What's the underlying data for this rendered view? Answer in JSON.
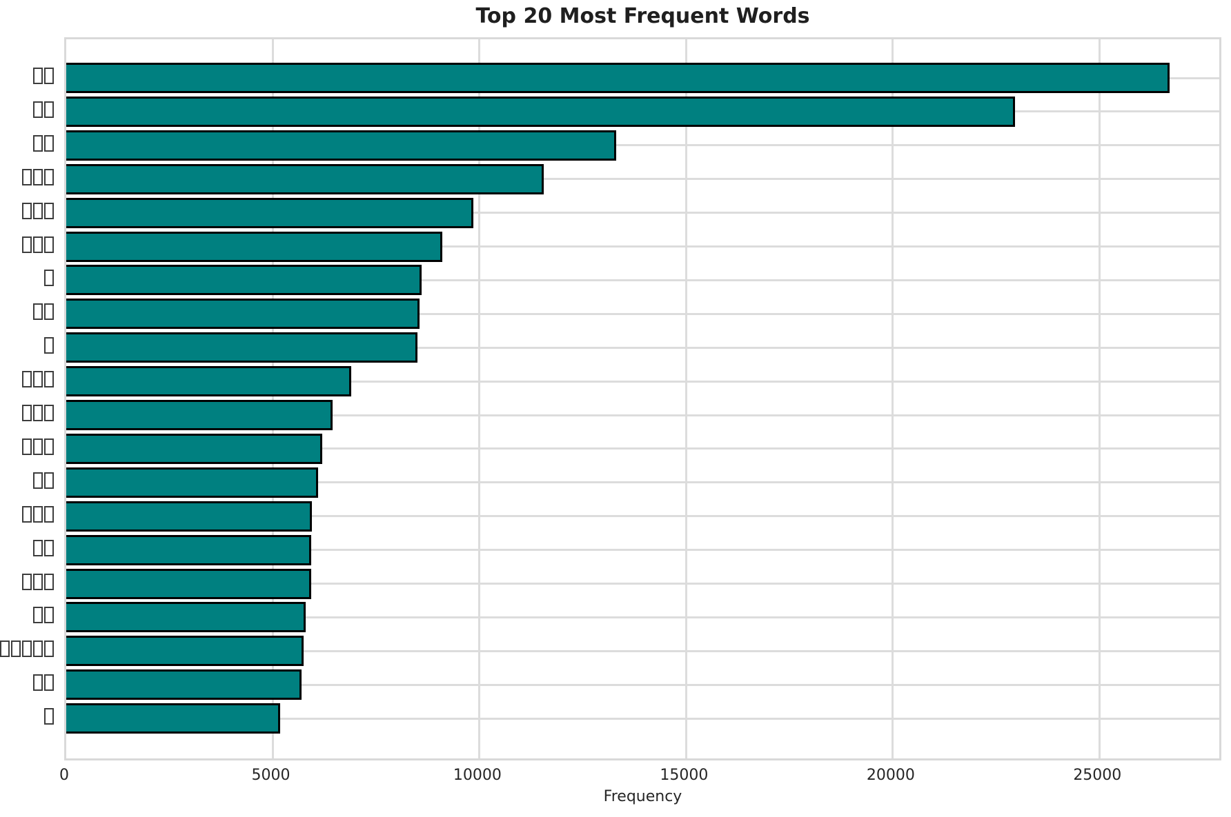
{
  "chart_data": {
    "type": "bar",
    "orientation": "horizontal",
    "title": "Top 20 Most Frequent Words",
    "xlabel": "Frequency",
    "ylabel": "",
    "label_note": "y-axis labels are CJK words drawn as missing-glyph (tofu) boxes; each □ represents one unrenderable character",
    "categories": [
      "□□",
      "□□",
      "□□",
      "□□□",
      "□□□",
      "□□□",
      "□",
      "□□",
      "□",
      "□□□",
      "□□□",
      "□□□",
      "□□",
      "□□□",
      "□□",
      "□□□",
      "□□",
      "□□□□□",
      "□□",
      "□"
    ],
    "values": [
      26700,
      22950,
      13300,
      11550,
      9850,
      9100,
      8600,
      8550,
      8500,
      6900,
      6450,
      6200,
      6100,
      5950,
      5930,
      5920,
      5800,
      5750,
      5700,
      5170
    ],
    "xlim": [
      0,
      28000
    ],
    "xticks": [
      0,
      5000,
      10000,
      15000,
      20000,
      25000
    ],
    "grid": true,
    "legend": false,
    "bar_color": "#008080",
    "bar_edge_color": "#000000",
    "grid_color": "#dcdcdc",
    "title_color": "#1f1f1f",
    "tick_color": "#262626"
  }
}
